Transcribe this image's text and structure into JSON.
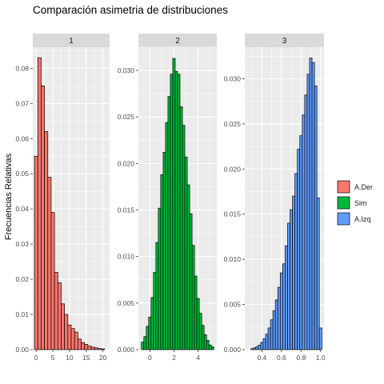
{
  "title": "Comparación asimetria de distribuciones",
  "ylabel": "Frecuencias Relativas",
  "legend": {
    "position": "right",
    "items": [
      {
        "label": "A.Der",
        "color": "#F8766D"
      },
      {
        "label": "Sim",
        "color": "#00BA38"
      },
      {
        "label": "A.Izq",
        "color": "#619CFF"
      }
    ]
  },
  "colors": {
    "panel_bg": "#EBEBEB",
    "strip_bg": "#D9D9D9",
    "grid": "#FFFFFF",
    "bar_outline": "#000000"
  },
  "chart_data": [
    {
      "type": "bar",
      "facet": "1",
      "series_name": "A.Der",
      "color": "#F8766D",
      "xlim": [
        -1,
        22
      ],
      "ylim": [
        0,
        0.086
      ],
      "xticks": [
        0,
        5,
        10,
        15,
        20
      ],
      "xtick_labels": [
        "0",
        "5",
        "10",
        "15",
        "20"
      ],
      "yticks": [
        0,
        0.01,
        0.02,
        0.03,
        0.04,
        0.05,
        0.06,
        0.07,
        0.08
      ],
      "ytick_labels": [
        "0.00",
        "0.01",
        "0.02",
        "0.03",
        "0.04",
        "0.05",
        "0.06",
        "0.07",
        "0.08"
      ],
      "bin_width": 1,
      "bins_x": [
        0,
        1,
        2,
        3,
        4,
        5,
        6,
        7,
        8,
        9,
        10,
        11,
        12,
        13,
        14,
        15,
        16,
        17,
        18,
        19,
        20
      ],
      "values": [
        0.055,
        0.083,
        0.075,
        0.062,
        0.049,
        0.039,
        0.022,
        0.019,
        0.013,
        0.01,
        0.007,
        0.006,
        0.005,
        0.003,
        0.002,
        0.0015,
        0.001,
        0.0007,
        0.0005,
        0.0003,
        0.0002
      ]
    },
    {
      "type": "bar",
      "facet": "2",
      "series_name": "Sim",
      "color": "#00BA38",
      "xlim": [
        -0.95,
        5.55
      ],
      "ylim": [
        0,
        0.0325
      ],
      "xticks": [
        0,
        2,
        4
      ],
      "xtick_labels": [
        "0",
        "2",
        "4"
      ],
      "yticks": [
        0,
        0.005,
        0.01,
        0.015,
        0.02,
        0.025,
        0.03
      ],
      "ytick_labels": [
        "0.000",
        "0.005",
        "0.010",
        "0.015",
        "0.020",
        "0.025",
        "0.030"
      ],
      "bin_width": 0.2,
      "bins_x": [
        -0.6,
        -0.4,
        -0.2,
        0.0,
        0.2,
        0.4,
        0.6,
        0.8,
        1.0,
        1.2,
        1.4,
        1.6,
        1.8,
        2.0,
        2.2,
        2.4,
        2.6,
        2.8,
        3.0,
        3.2,
        3.4,
        3.6,
        3.8,
        4.0,
        4.2,
        4.4,
        4.6,
        4.8,
        5.0,
        5.2
      ],
      "values": [
        0.0008,
        0.0014,
        0.0025,
        0.0035,
        0.0056,
        0.0083,
        0.0115,
        0.0152,
        0.0188,
        0.0212,
        0.0244,
        0.0272,
        0.0296,
        0.0313,
        0.0299,
        0.0296,
        0.0261,
        0.0241,
        0.0207,
        0.0177,
        0.0146,
        0.0112,
        0.0079,
        0.0055,
        0.0039,
        0.0026,
        0.0016,
        0.001,
        0.0005,
        0.0003
      ]
    },
    {
      "type": "bar",
      "facet": "3",
      "series_name": "A.Izq",
      "color": "#619CFF",
      "xlim": [
        0.225,
        1.035
      ],
      "ylim": [
        0,
        0.0335
      ],
      "xticks": [
        0.4,
        0.6,
        0.8,
        1.0
      ],
      "xtick_labels": [
        "0.4",
        "0.6",
        "0.8",
        "1.0"
      ],
      "yticks": [
        0,
        0.005,
        0.01,
        0.015,
        0.02,
        0.025,
        0.03
      ],
      "ytick_labels": [
        "0.000",
        "0.005",
        "0.010",
        "0.015",
        "0.020",
        "0.025",
        "0.030"
      ],
      "bin_width": 0.025,
      "bins_x": [
        0.3,
        0.325,
        0.35,
        0.375,
        0.4,
        0.425,
        0.45,
        0.475,
        0.5,
        0.525,
        0.55,
        0.575,
        0.6,
        0.625,
        0.65,
        0.675,
        0.7,
        0.725,
        0.75,
        0.775,
        0.8,
        0.825,
        0.85,
        0.875,
        0.9,
        0.925,
        0.95,
        0.975,
        1.0
      ],
      "values": [
        0.0001,
        0.0002,
        0.0003,
        0.0005,
        0.0008,
        0.0012,
        0.0017,
        0.0024,
        0.0033,
        0.0043,
        0.0055,
        0.0069,
        0.0085,
        0.0095,
        0.0115,
        0.014,
        0.0155,
        0.017,
        0.0195,
        0.0222,
        0.0237,
        0.026,
        0.0282,
        0.0305,
        0.0323,
        0.0318,
        0.0292,
        0.0168,
        0.0024
      ]
    }
  ]
}
